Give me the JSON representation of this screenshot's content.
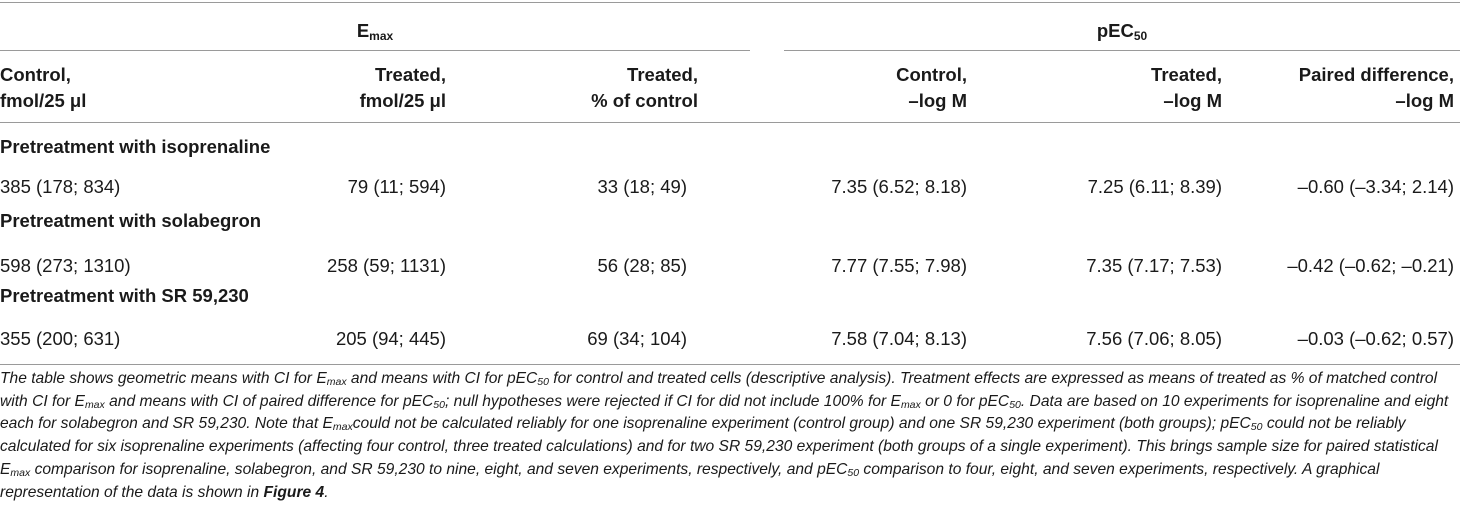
{
  "header": {
    "group_emax": {
      "base": "E",
      "sub": "max"
    },
    "group_pec50": {
      "base": "pEC",
      "sub": "50"
    },
    "columns": [
      {
        "line1": "Control,",
        "line2": "fmol/25 μl"
      },
      {
        "line1": "Treated,",
        "line2": "fmol/25 μl"
      },
      {
        "line1": "Treated,",
        "line2": "% of control"
      },
      {
        "line1": "Control,",
        "line2": "–log M"
      },
      {
        "line1": "Treated,",
        "line2": "–log M"
      },
      {
        "line1": "Paired difference,",
        "line2": "–log M"
      }
    ]
  },
  "sections": [
    {
      "title": "Pretreatment with isoprenaline",
      "values": [
        "385 (178; 834)",
        "79 (11; 594)",
        "33 (18; 49)",
        "7.35 (6.52; 8.18)",
        "7.25 (6.11; 8.39)",
        "–0.60 (–3.34; 2.14)"
      ]
    },
    {
      "title": "Pretreatment with solabegron",
      "values": [
        "598 (273; 1310)",
        "258 (59; 1131)",
        "56 (28; 85)",
        "7.77 (7.55; 7.98)",
        "7.35 (7.17; 7.53)",
        "–0.42 (–0.62; –0.21)"
      ]
    },
    {
      "title": "Pretreatment with SR 59,230",
      "values": [
        "355 (200; 631)",
        "205 (94; 445)",
        "69 (34; 104)",
        "7.58 (7.04; 8.13)",
        "7.56 (7.06; 8.05)",
        "–0.03 (–0.62; 0.57)"
      ]
    }
  ],
  "caption": {
    "s1": "The table shows geometric means with CI for ",
    "s2": " and means with CI for ",
    "s3": " for control and treated cells (descriptive analysis). Treatment effects are expressed as means of treated as % of matched control with CI for ",
    "s4": " and means with CI of paired difference for ",
    "s5": "; null hypotheses were rejected if CI for did not include 100% for ",
    "s6": " or 0 for ",
    "s7": ". Data are based on 10 experiments for isoprenaline and eight each for solabegron and SR 59,230. Note that ",
    "s8": "could not be calculated reliably for one isoprenaline experiment (control group) and one SR 59,230 experiment (both groups); ",
    "s9": " could not be reliably calculated for six isoprenaline experiments (affecting four control, three treated calculations) and for two SR 59,230 experiment (both groups of a single experiment). This brings sample size for paired statistical ",
    "s10": " comparison for isoprenaline, solabegron, and SR 59,230 to nine, eight, and seven experiments, respectively, and ",
    "s11": " comparison to four, eight, and seven experiments, respectively. A graphical representation of the data is shown in ",
    "figure_ref": "Figure 4",
    "s12": "."
  }
}
